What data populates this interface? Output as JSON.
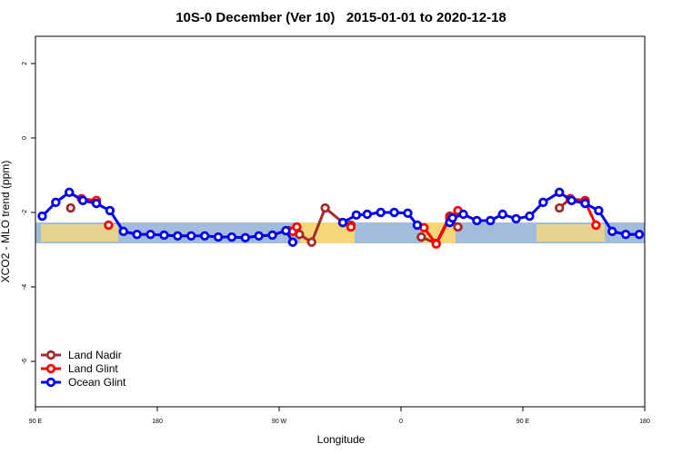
{
  "chart_data": {
    "type": "line",
    "title": "10S-0 December (Ver 10)   2015-01-01 to 2020-12-18",
    "x_label": "Longitude",
    "y_label": "XCO2 - MLO trend (ppm)",
    "xlim": [
      90,
      540
    ],
    "xticks": [
      {
        "value": 90,
        "label": "90 E"
      },
      180,
      {
        "value": 270,
        "label": "90 W"
      },
      {
        "value": 360,
        "label": "0"
      },
      {
        "value": 450,
        "label": "90 E"
      },
      {
        "value": 540,
        "label": "180"
      }
    ],
    "ylim": [
      -7.22,
      2.73
    ],
    "yticks": [
      -6,
      -4,
      -2,
      0,
      2
    ],
    "legend": "bottom-left",
    "series": [
      {
        "name": "Land Nadir",
        "color": "#a52a2a",
        "x": [
          116,
          200,
          277,
          285,
          294,
          304,
          317,
          323,
          350,
          375,
          386,
          396,
          402,
          440,
          477,
          485,
          496
        ],
        "values": [
          -1.88,
          null,
          -2.49,
          -2.59,
          -2.8,
          -1.88,
          -2.27,
          -2.34,
          null,
          -2.66,
          -2.83,
          -2.1,
          -2.39,
          null,
          -1.88,
          -1.63,
          -1.68
        ]
      },
      {
        "name": "Land Glint",
        "color": "#ff0000",
        "x": [
          124,
          135,
          140,
          144,
          200,
          280,
          283,
          300,
          323,
          350,
          377,
          386,
          396,
          402,
          440,
          485,
          496,
          504
        ],
        "values": [
          -1.63,
          -1.68,
          null,
          -2.34,
          null,
          -2.51,
          -2.39,
          null,
          -2.39,
          null,
          -2.41,
          -2.85,
          -2.15,
          -1.95,
          null,
          -1.63,
          -1.71,
          -2.34
        ]
      },
      {
        "name": "Ocean Glint",
        "color": "#0000ee",
        "x": [
          95,
          105,
          115,
          125,
          135,
          145,
          155,
          165,
          175,
          185,
          195,
          205,
          215,
          225,
          235,
          245,
          255,
          265,
          275,
          280,
          300,
          317,
          327,
          335,
          345,
          355,
          365,
          372,
          385,
          396,
          398,
          406,
          416,
          426,
          435,
          445,
          455,
          465,
          477,
          486,
          496,
          506,
          516,
          526,
          536
        ],
        "values": [
          -2.1,
          -1.73,
          -1.46,
          -1.68,
          -1.76,
          -1.95,
          -2.51,
          -2.59,
          -2.59,
          -2.61,
          -2.63,
          -2.63,
          -2.63,
          -2.66,
          -2.66,
          -2.68,
          -2.63,
          -2.61,
          -2.49,
          -2.8,
          null,
          -2.27,
          -2.07,
          -2.05,
          -2.0,
          -2.0,
          -2.02,
          -2.34,
          null,
          -2.27,
          -2.15,
          -2.05,
          -2.22,
          -2.22,
          -2.05,
          -2.17,
          -2.1,
          -1.73,
          -1.46,
          -1.68,
          -1.76,
          -1.95,
          -2.51,
          -2.59,
          -2.59
        ]
      }
    ]
  }
}
